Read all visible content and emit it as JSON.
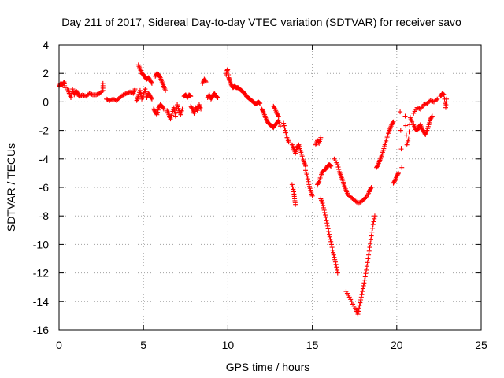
{
  "chart_data": {
    "type": "scatter",
    "title": "Day 211 of 2017, Sidereal Day-to-day VTEC variation (SDTVAR) for receiver savo",
    "xlabel": "GPS time / hours",
    "ylabel": "SDTVAR / TECUs",
    "xlim": [
      0,
      25
    ],
    "ylim": [
      -16,
      4
    ],
    "xticks": [
      0,
      5,
      10,
      15,
      20,
      25
    ],
    "yticks": [
      -16,
      -14,
      -12,
      -10,
      -8,
      -6,
      -4,
      -2,
      0,
      2,
      4
    ],
    "grid": true,
    "marker": "+",
    "color": "#ff0000",
    "segments": [
      [
        [
          0.0,
          1.1
        ],
        [
          0.1,
          1.3
        ],
        [
          0.2,
          1.2
        ],
        [
          0.3,
          1.4
        ],
        [
          0.35,
          1.0
        ]
      ],
      [
        [
          0.5,
          0.9
        ],
        [
          0.6,
          0.6
        ],
        [
          0.7,
          0.3
        ],
        [
          0.8,
          0.9
        ],
        [
          0.9,
          0.5
        ],
        [
          1.0,
          0.8
        ],
        [
          1.1,
          0.6
        ],
        [
          1.2,
          0.4
        ],
        [
          1.4,
          0.5
        ],
        [
          1.6,
          0.4
        ],
        [
          1.8,
          0.6
        ],
        [
          2.0,
          0.5
        ],
        [
          2.2,
          0.5
        ],
        [
          2.4,
          0.6
        ],
        [
          2.6,
          0.8
        ],
        [
          2.6,
          1.3
        ]
      ],
      [
        [
          2.8,
          0.2
        ],
        [
          3.0,
          0.1
        ],
        [
          3.2,
          0.2
        ],
        [
          3.4,
          0.1
        ],
        [
          3.6,
          0.3
        ],
        [
          3.8,
          0.5
        ],
        [
          4.0,
          0.6
        ],
        [
          4.2,
          0.7
        ],
        [
          4.4,
          0.6
        ],
        [
          4.5,
          0.9
        ]
      ],
      [
        [
          4.6,
          0.1
        ],
        [
          4.7,
          0.4
        ],
        [
          4.8,
          0.8
        ],
        [
          4.9,
          0.2
        ],
        [
          5.0,
          0.5
        ],
        [
          5.1,
          0.9
        ],
        [
          5.2,
          0.3
        ],
        [
          5.3,
          0.6
        ],
        [
          5.4,
          0.4
        ],
        [
          5.5,
          0.2
        ]
      ],
      [
        [
          4.7,
          2.6
        ],
        [
          4.8,
          2.3
        ],
        [
          4.9,
          2.0
        ],
        [
          5.0,
          1.9
        ],
        [
          5.1,
          1.7
        ],
        [
          5.2,
          1.6
        ],
        [
          5.3,
          1.7
        ],
        [
          5.4,
          1.5
        ],
        [
          5.5,
          1.3
        ]
      ],
      [
        [
          5.7,
          1.8
        ],
        [
          5.8,
          2.0
        ],
        [
          5.9,
          1.9
        ],
        [
          6.0,
          1.7
        ],
        [
          6.1,
          1.4
        ],
        [
          6.2,
          1.1
        ],
        [
          6.3,
          0.8
        ]
      ],
      [
        [
          5.6,
          -0.5
        ],
        [
          5.7,
          -0.7
        ],
        [
          5.8,
          -0.9
        ],
        [
          5.9,
          -0.4
        ],
        [
          6.0,
          -0.2
        ],
        [
          6.1,
          -0.3
        ],
        [
          6.2,
          -0.5
        ]
      ],
      [
        [
          6.4,
          -0.6
        ],
        [
          6.5,
          -0.9
        ],
        [
          6.6,
          -1.2
        ],
        [
          6.7,
          -0.8
        ],
        [
          6.8,
          -0.4
        ],
        [
          6.9,
          -1.0
        ],
        [
          7.0,
          -0.2
        ],
        [
          7.1,
          -0.6
        ],
        [
          7.2,
          -0.9
        ],
        [
          7.3,
          -0.5
        ]
      ],
      [
        [
          7.4,
          0.4
        ],
        [
          7.5,
          0.5
        ],
        [
          7.6,
          0.3
        ],
        [
          7.7,
          0.5
        ],
        [
          7.8,
          0.4
        ]
      ],
      [
        [
          7.8,
          -0.3
        ],
        [
          7.9,
          -0.5
        ],
        [
          8.0,
          -0.8
        ],
        [
          8.1,
          -0.4
        ],
        [
          8.2,
          -0.6
        ],
        [
          8.3,
          -0.2
        ],
        [
          8.4,
          -0.5
        ]
      ],
      [
        [
          8.5,
          1.3
        ],
        [
          8.6,
          1.6
        ],
        [
          8.7,
          1.4
        ]
      ],
      [
        [
          8.8,
          0.3
        ],
        [
          8.9,
          0.5
        ],
        [
          9.0,
          0.2
        ],
        [
          9.1,
          0.4
        ],
        [
          9.2,
          0.6
        ],
        [
          9.3,
          0.4
        ],
        [
          9.4,
          0.3
        ]
      ],
      [
        [
          9.9,
          1.9
        ],
        [
          9.95,
          2.2
        ],
        [
          10.0,
          2.3
        ],
        [
          10.05,
          1.7
        ],
        [
          10.1,
          1.5
        ],
        [
          10.2,
          1.2
        ],
        [
          10.3,
          1.0
        ],
        [
          10.4,
          1.1
        ],
        [
          10.5,
          1.0
        ],
        [
          10.6,
          1.0
        ],
        [
          10.7,
          0.9
        ],
        [
          10.8,
          0.8
        ],
        [
          10.9,
          0.7
        ],
        [
          11.0,
          0.6
        ],
        [
          11.1,
          0.4
        ],
        [
          11.2,
          0.3
        ],
        [
          11.3,
          0.2
        ],
        [
          11.4,
          0.1
        ],
        [
          11.5,
          0.0
        ],
        [
          11.6,
          -0.1
        ],
        [
          11.7,
          -0.1
        ],
        [
          11.8,
          0.0
        ],
        [
          11.9,
          -0.1
        ]
      ],
      [
        [
          12.0,
          -0.5
        ],
        [
          12.1,
          -0.7
        ],
        [
          12.2,
          -1.0
        ],
        [
          12.3,
          -1.3
        ],
        [
          12.4,
          -1.5
        ],
        [
          12.5,
          -1.6
        ],
        [
          12.6,
          -1.7
        ],
        [
          12.7,
          -1.8
        ],
        [
          12.8,
          -1.6
        ],
        [
          12.9,
          -1.5
        ],
        [
          13.0,
          -1.3
        ],
        [
          13.1,
          -1.7
        ]
      ],
      [
        [
          12.7,
          -0.3
        ],
        [
          12.8,
          -0.5
        ],
        [
          12.9,
          -0.8
        ],
        [
          13.0,
          -1.0
        ]
      ],
      [
        [
          13.3,
          -1.5
        ],
        [
          13.4,
          -2.0
        ],
        [
          13.5,
          -2.5
        ],
        [
          13.6,
          -2.8
        ]
      ],
      [
        [
          13.8,
          -3.0
        ],
        [
          13.9,
          -3.3
        ],
        [
          14.0,
          -3.6
        ],
        [
          14.1,
          -3.2
        ],
        [
          14.2,
          -3.0
        ],
        [
          14.3,
          -3.4
        ],
        [
          14.4,
          -3.8
        ],
        [
          14.5,
          -4.2
        ],
        [
          14.6,
          -4.5
        ]
      ],
      [
        [
          14.6,
          -4.8
        ],
        [
          14.7,
          -5.2
        ],
        [
          14.8,
          -5.8
        ],
        [
          14.9,
          -6.2
        ],
        [
          15.0,
          -6.6
        ]
      ],
      [
        [
          13.8,
          -5.8
        ],
        [
          13.9,
          -6.3
        ],
        [
          13.95,
          -6.8
        ],
        [
          14.0,
          -7.2
        ]
      ],
      [
        [
          15.2,
          -3.0
        ],
        [
          15.3,
          -2.7
        ],
        [
          15.4,
          -2.9
        ],
        [
          15.5,
          -2.5
        ]
      ],
      [
        [
          15.3,
          -5.8
        ],
        [
          15.4,
          -5.6
        ],
        [
          15.5,
          -5.2
        ],
        [
          15.6,
          -4.9
        ],
        [
          15.7,
          -4.8
        ],
        [
          15.8,
          -4.7
        ],
        [
          15.9,
          -4.5
        ],
        [
          16.0,
          -4.4
        ],
        [
          16.1,
          -4.5
        ]
      ],
      [
        [
          15.5,
          -6.8
        ],
        [
          15.6,
          -7.1
        ],
        [
          15.7,
          -7.6
        ],
        [
          15.8,
          -8.1
        ],
        [
          15.9,
          -8.7
        ],
        [
          16.0,
          -9.3
        ],
        [
          16.1,
          -9.8
        ],
        [
          16.2,
          -10.4
        ],
        [
          16.3,
          -10.9
        ],
        [
          16.4,
          -11.4
        ],
        [
          16.5,
          -12.0
        ]
      ],
      [
        [
          16.3,
          -4.0
        ],
        [
          16.5,
          -4.4
        ],
        [
          16.6,
          -4.9
        ],
        [
          16.7,
          -5.2
        ],
        [
          16.8,
          -5.5
        ],
        [
          16.9,
          -5.9
        ],
        [
          17.0,
          -6.2
        ],
        [
          17.1,
          -6.5
        ],
        [
          17.3,
          -6.7
        ],
        [
          17.5,
          -6.9
        ],
        [
          17.7,
          -7.1
        ],
        [
          17.9,
          -7.0
        ],
        [
          18.1,
          -6.8
        ],
        [
          18.3,
          -6.5
        ],
        [
          18.4,
          -6.2
        ],
        [
          18.5,
          -6.0
        ]
      ],
      [
        [
          17.0,
          -13.3
        ],
        [
          17.2,
          -13.7
        ],
        [
          17.4,
          -14.2
        ],
        [
          17.6,
          -14.6
        ],
        [
          17.7,
          -14.9
        ],
        [
          17.8,
          -14.3
        ],
        [
          17.9,
          -13.7
        ],
        [
          18.0,
          -13.1
        ],
        [
          18.1,
          -12.5
        ],
        [
          18.2,
          -11.8
        ],
        [
          18.3,
          -11.0
        ],
        [
          18.4,
          -10.2
        ],
        [
          18.5,
          -9.4
        ],
        [
          18.6,
          -8.6
        ],
        [
          18.7,
          -8.0
        ]
      ],
      [
        [
          18.8,
          -4.6
        ],
        [
          18.9,
          -4.4
        ],
        [
          19.0,
          -4.1
        ],
        [
          19.1,
          -3.8
        ],
        [
          19.2,
          -3.4
        ],
        [
          19.3,
          -3.0
        ],
        [
          19.4,
          -2.6
        ],
        [
          19.5,
          -2.2
        ],
        [
          19.6,
          -1.9
        ],
        [
          19.7,
          -1.6
        ],
        [
          19.8,
          -1.4
        ]
      ],
      [
        [
          19.8,
          -5.7
        ],
        [
          19.9,
          -5.5
        ],
        [
          20.0,
          -5.2
        ],
        [
          20.1,
          -5.0
        ]
      ],
      [
        [
          20.2,
          -0.7
        ],
        [
          20.3,
          -4.6
        ]
      ],
      [
        [
          20.5,
          -1.0
        ],
        [
          20.6,
          -3.0
        ],
        [
          20.7,
          -2.6
        ],
        [
          20.8,
          -1.1
        ],
        [
          20.9,
          -1.4
        ]
      ],
      [
        [
          21.0,
          -1.6
        ],
        [
          21.1,
          -1.9
        ],
        [
          21.2,
          -2.0
        ],
        [
          21.3,
          -1.8
        ],
        [
          21.4,
          -1.6
        ],
        [
          21.5,
          -1.9
        ],
        [
          21.6,
          -2.1
        ],
        [
          21.7,
          -2.3
        ],
        [
          21.8,
          -2.0
        ],
        [
          21.9,
          -1.6
        ],
        [
          22.0,
          -1.2
        ],
        [
          22.1,
          -1.0
        ]
      ],
      [
        [
          21.0,
          -0.8
        ],
        [
          21.2,
          -0.4
        ],
        [
          21.4,
          -0.5
        ],
        [
          21.6,
          -0.2
        ],
        [
          21.8,
          -0.1
        ],
        [
          22.0,
          0.1
        ],
        [
          22.2,
          0.0
        ],
        [
          22.4,
          0.2
        ]
      ],
      [
        [
          22.6,
          0.4
        ],
        [
          22.7,
          0.6
        ],
        [
          22.8,
          0.5
        ],
        [
          22.9,
          -0.4
        ],
        [
          22.95,
          0.2
        ]
      ]
    ]
  }
}
